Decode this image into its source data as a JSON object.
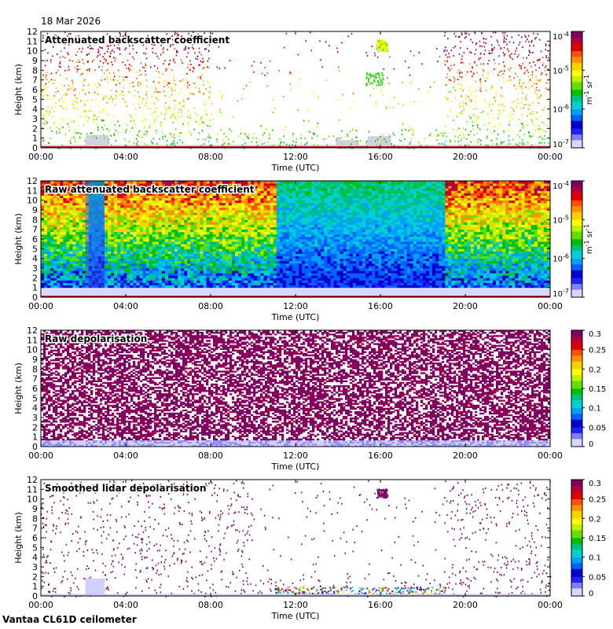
{
  "header": {
    "date": "18 Mar 2026"
  },
  "footer": {
    "site": "Vantaa CL61D ceilometer"
  },
  "chart_data": [
    {
      "type": "heatmap",
      "title": "Attenuated backscatter coefficient",
      "xlabel": "Time (UTC)",
      "ylabel": "Height (km)",
      "xticks": [
        "00:00",
        "04:00",
        "08:00",
        "12:00",
        "16:00",
        "20:00",
        "00:00"
      ],
      "xlim_hours": [
        0,
        24
      ],
      "ylim": [
        0,
        12
      ],
      "yticks": [
        0,
        1,
        2,
        3,
        4,
        5,
        6,
        7,
        8,
        9,
        10,
        11,
        12
      ],
      "colorbar": {
        "scale": "log",
        "range": [
          1e-07,
          0.0001
        ],
        "labels": [
          "10-7",
          "10-6",
          "10-5",
          "10-4"
        ],
        "unit": "m-1 sr-1"
      },
      "features": {
        "gray_fill": [
          [
            0.0,
            0.3
          ],
          [
            2.1,
            1.3
          ],
          [
            11.0,
            0.3
          ],
          [
            13.9,
            0.8
          ],
          [
            15.4,
            1.2
          ],
          [
            19.0,
            0.2
          ]
        ],
        "sparse_signal_max_km": 12
      }
    },
    {
      "type": "heatmap",
      "title": "Raw attenuated backscatter coefficient",
      "xlabel": "Time (UTC)",
      "ylabel": "Height (km)",
      "xticks": [
        "00:00",
        "04:00",
        "08:00",
        "12:00",
        "16:00",
        "20:00",
        "00:00"
      ],
      "xlim_hours": [
        0,
        24
      ],
      "ylim": [
        0,
        12
      ],
      "yticks": [
        0,
        1,
        2,
        3,
        4,
        5,
        6,
        7,
        8,
        9,
        10,
        11,
        12
      ],
      "colorbar": {
        "scale": "log",
        "range": [
          1e-07,
          0.0001
        ],
        "labels": [
          "10-7",
          "10-6",
          "10-5",
          "10-4"
        ],
        "unit": "m-1 sr-1"
      },
      "features": {
        "noisy_gaps_hours": [
          [
            2.1,
            3.0
          ],
          [
            11.0,
            19.0
          ]
        ]
      }
    },
    {
      "type": "heatmap",
      "title": "Raw depolarisation",
      "xlabel": "Time (UTC)",
      "ylabel": "Height (km)",
      "xticks": [
        "00:00",
        "04:00",
        "08:00",
        "12:00",
        "16:00",
        "20:00",
        "00:00"
      ],
      "xlim_hours": [
        0,
        24
      ],
      "ylim": [
        0,
        12
      ],
      "yticks": [
        0,
        1,
        2,
        3,
        4,
        5,
        6,
        7,
        8,
        9,
        10,
        11,
        12
      ],
      "colorbar": {
        "scale": "linear",
        "range": [
          0,
          0.3
        ],
        "labels": [
          "0",
          "0.05",
          "0.1",
          "0.15",
          "0.2",
          "0.25",
          "0.3"
        ],
        "unit": ""
      }
    },
    {
      "type": "heatmap",
      "title": "Smoothed lidar depolarisation",
      "xlabel": "Time (UTC)",
      "ylabel": "Height (km)",
      "xticks": [
        "00:00",
        "04:00",
        "08:00",
        "12:00",
        "16:00",
        "20:00",
        "00:00"
      ],
      "xlim_hours": [
        0,
        24
      ],
      "ylim": [
        0,
        12
      ],
      "yticks": [
        0,
        1,
        2,
        3,
        4,
        5,
        6,
        7,
        8,
        9,
        10,
        11,
        12
      ],
      "colorbar": {
        "scale": "linear",
        "range": [
          0,
          0.3
        ],
        "labels": [
          "0",
          "0.05",
          "0.1",
          "0.15",
          "0.2",
          "0.25",
          "0.3"
        ],
        "unit": ""
      }
    }
  ]
}
